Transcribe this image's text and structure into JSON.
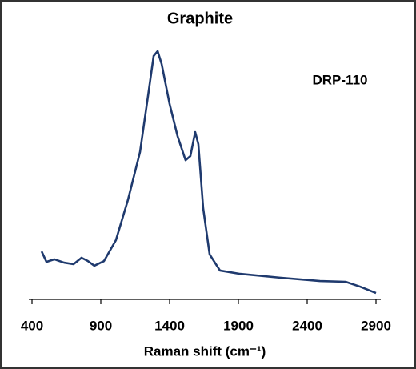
{
  "chart_data": {
    "type": "line",
    "title": "Graphite",
    "annotation": "DRP-110",
    "annotation_color": "#e31a1c",
    "xlabel": "Raman shift (cm⁻¹)",
    "x": [
      470,
      505,
      563,
      633,
      702,
      760,
      807,
      853,
      923,
      1010,
      1097,
      1185,
      1243,
      1284,
      1313,
      1342,
      1400,
      1458,
      1516,
      1551,
      1586,
      1609,
      1644,
      1691,
      1766,
      1912,
      2202,
      2493,
      2679,
      2784,
      2900
    ],
    "series": [
      {
        "name": "Graphite",
        "color": "#1f3a6e",
        "values": [
          18.8,
          14.7,
          15.7,
          14.4,
          13.8,
          16.3,
          15,
          13.2,
          15,
          23.2,
          38.9,
          57.7,
          79.6,
          95.3,
          97.2,
          92.2,
          76.5,
          63.9,
          54.5,
          56.1,
          65.5,
          60.8,
          35.7,
          17.6,
          11.3,
          10,
          8.5,
          7.2,
          6.9,
          5,
          2.5
        ]
      }
    ],
    "xlim": [
      400,
      2900
    ],
    "xticks": [
      400,
      900,
      1400,
      1900,
      2400,
      2900
    ],
    "ylim": [
      0,
      100
    ]
  }
}
